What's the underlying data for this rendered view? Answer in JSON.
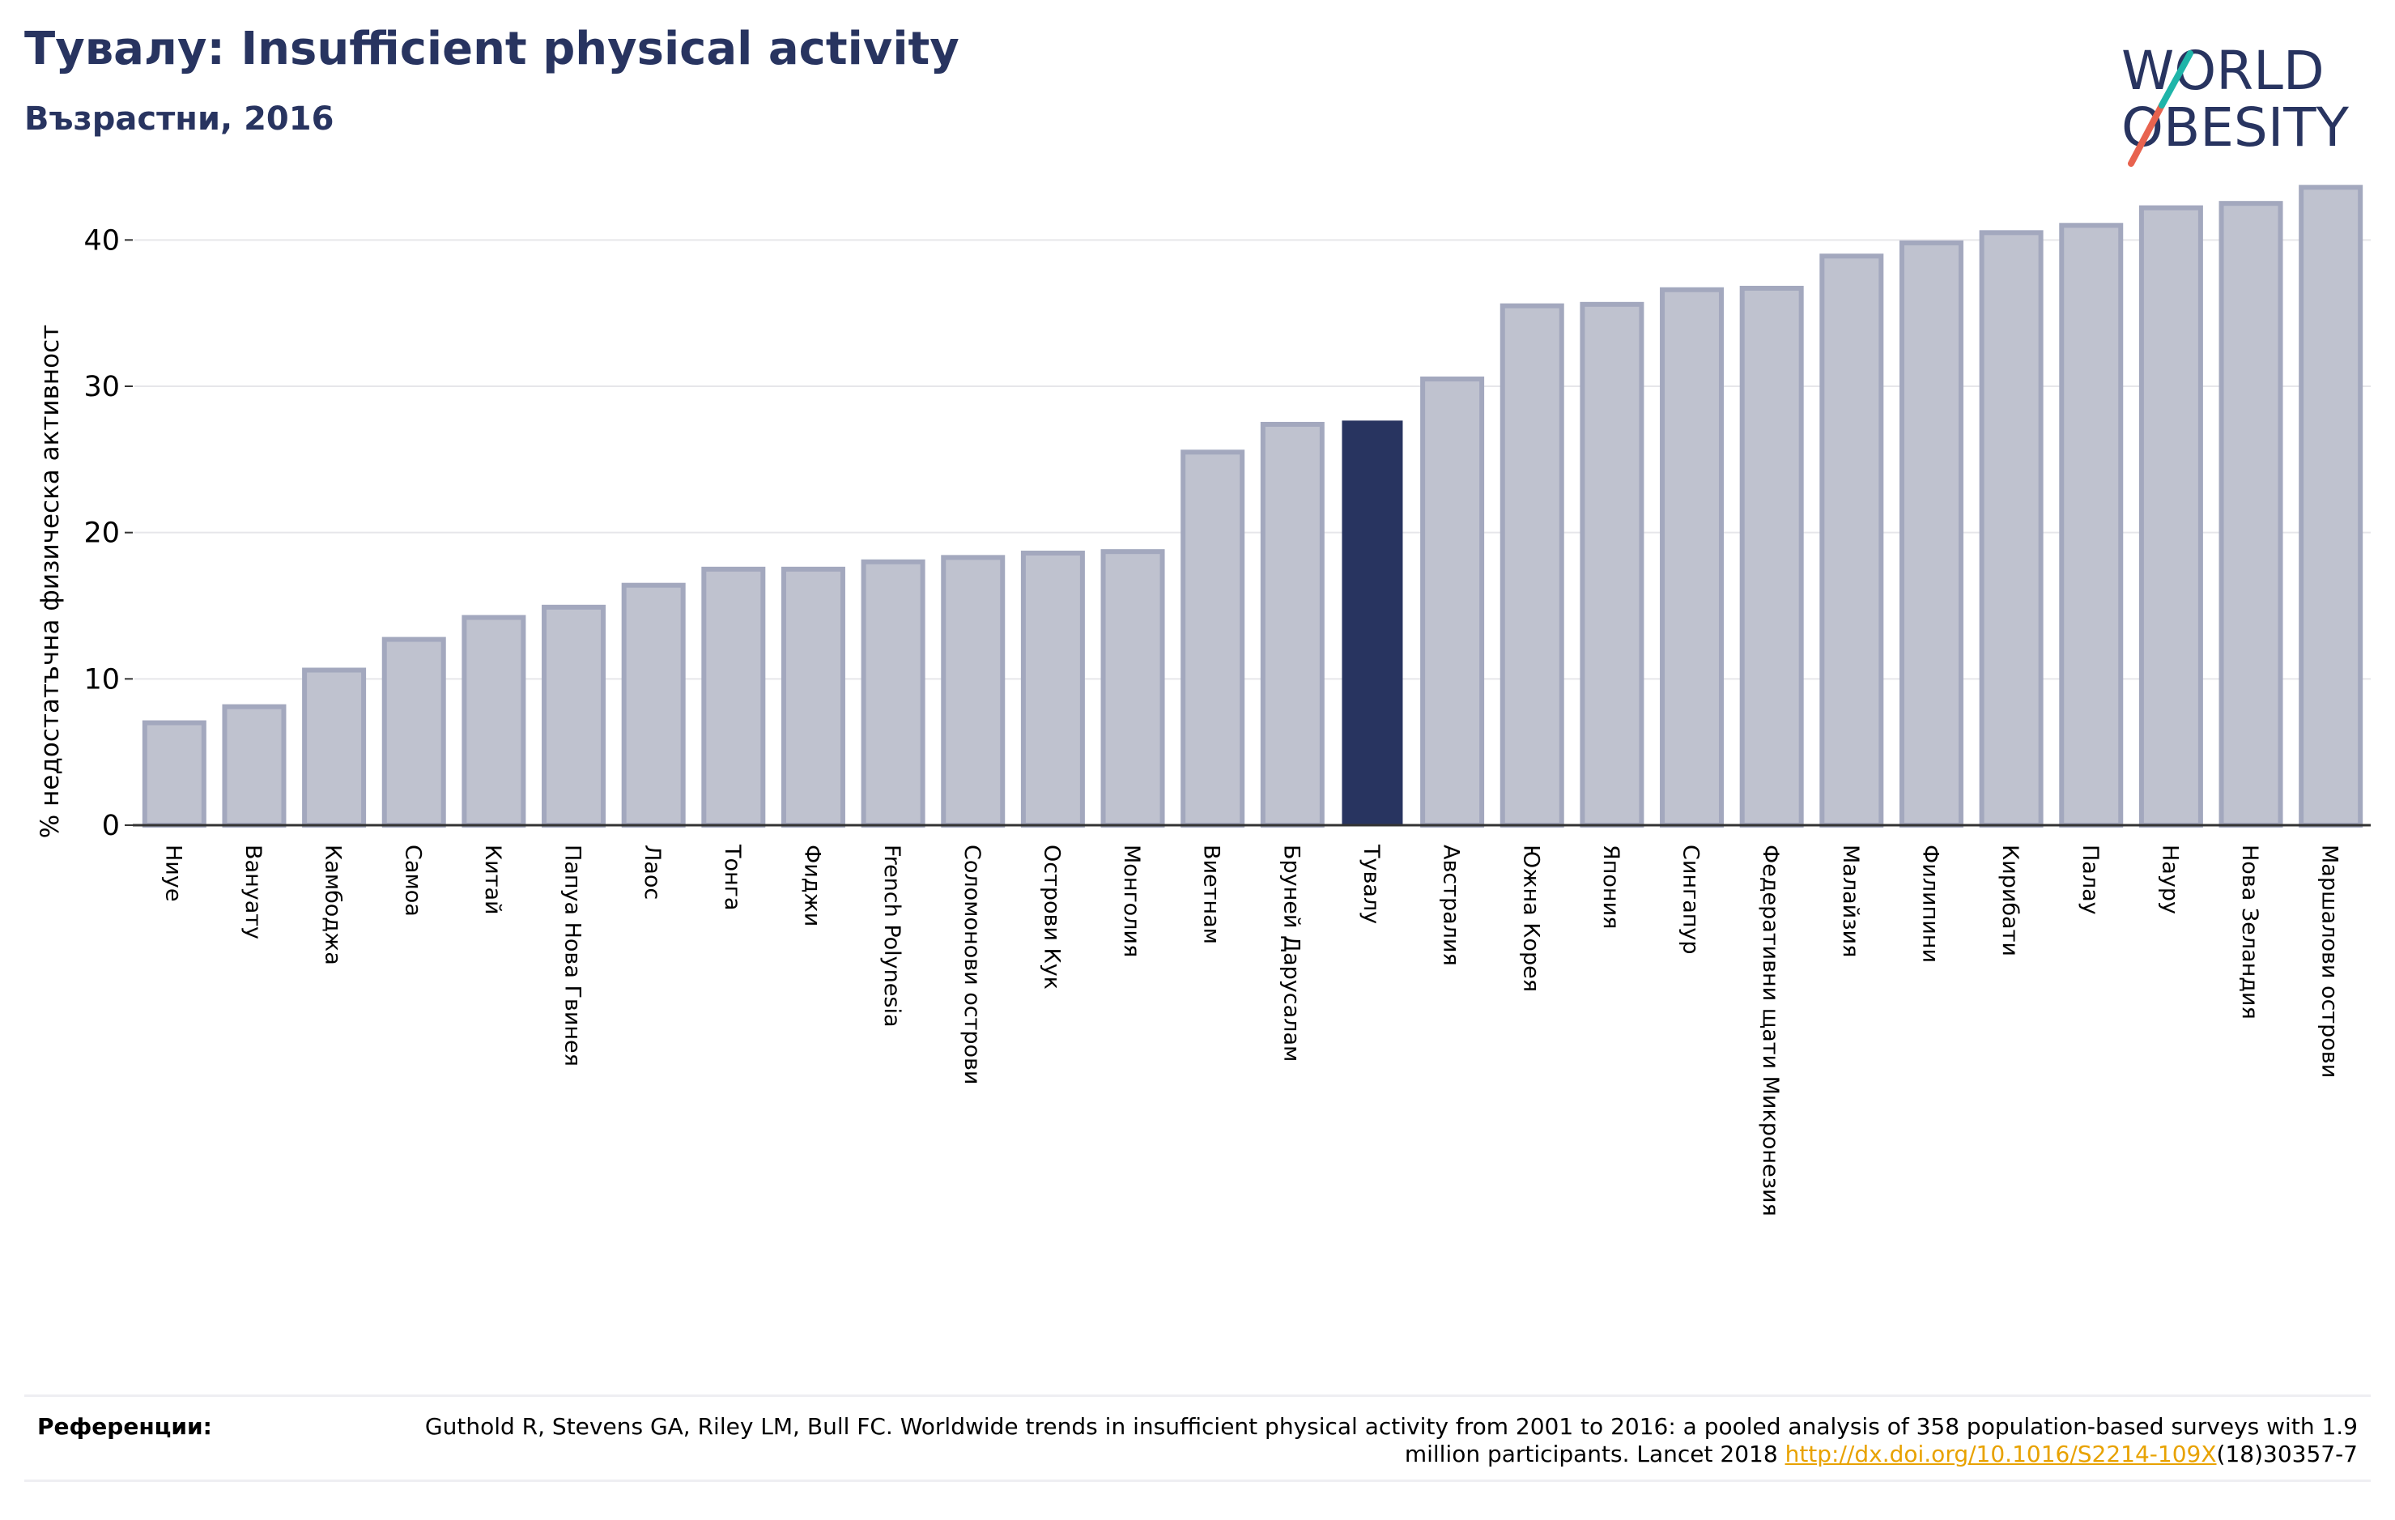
{
  "header": {
    "title": "Тувалу: Insufficient physical activity",
    "subtitle": "Възрастни, 2016"
  },
  "logo": {
    "line1": "WORLD",
    "line2": "OBESITY"
  },
  "chart_data": {
    "type": "bar",
    "ylabel": "% недостатъчна физическа активност",
    "ylim": [
      0,
      45
    ],
    "yticks": [
      0,
      10,
      20,
      30,
      40
    ],
    "grid": true,
    "highlight": "Тувалу",
    "colors": {
      "bar": "#bfc2cf",
      "bar_edge": "#a3a8be",
      "highlight": "#283460",
      "grid": "#e6e6ea",
      "axis": "#333333"
    },
    "categories": [
      "Ниуе",
      "Вануату",
      "Камбоджа",
      "Самоа",
      "Китай",
      "Папуа Нова Гвинея",
      "Лаос",
      "Тонга",
      "Фиджи",
      "French Polynesia",
      "Соломонови острови",
      "Острови Кук",
      "Монголия",
      "Виетнам",
      "Бруней Дарусалам",
      "Тувалу",
      "Австралия",
      "Южна Корея",
      "Япония",
      "Сингапур",
      "Федеративни щати Микронезия",
      "Малайзия",
      "Филипини",
      "Кирибати",
      "Палау",
      "Науру",
      "Нова Зеландия",
      "Маршалови острови"
    ],
    "values": [
      7.0,
      8.1,
      10.6,
      12.7,
      14.2,
      14.9,
      16.4,
      17.5,
      17.5,
      18.0,
      18.3,
      18.6,
      18.7,
      25.5,
      27.4,
      27.6,
      30.5,
      35.5,
      35.6,
      36.6,
      36.7,
      38.9,
      39.8,
      40.5,
      41.0,
      42.2,
      42.5,
      43.6
    ]
  },
  "footer": {
    "ref_label": "Референции:",
    "ref_text": "Guthold R, Stevens GA, Riley LM, Bull FC. Worldwide trends in insufficient physical activity from 2001 to 2016: a pooled analysis of 358 population-based surveys with 1.9 million participants. Lancet 2018 ",
    "ref_link": "http://dx.doi.org/10.1016/S2214-109X",
    "ref_suffix": "(18)30357-7"
  }
}
